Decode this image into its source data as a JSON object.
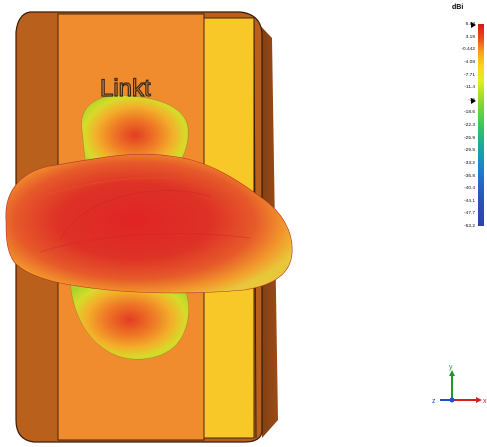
{
  "model": {
    "label": "Linkt"
  },
  "legend": {
    "unit": "dBi",
    "ticks": [
      "6.83",
      "3.19",
      "-0.442",
      "-4.08",
      "-7.71",
      "-11.4",
      "-15",
      "-18.6",
      "-22.3",
      "-25.9",
      "-29.5",
      "-33.2",
      "-36.8",
      "-40.4",
      "-44.1",
      "-47.7",
      "-53.2"
    ],
    "marker_ticks": [
      "6.83",
      "-15"
    ]
  },
  "axes": {
    "y": "y",
    "x": "x",
    "z": "z",
    "colors": {
      "x": "#d42020",
      "y": "#1e9a2a",
      "z": "#1f4fcf"
    }
  },
  "colors": {
    "device_frame": "#b85a1c",
    "device_face": "#f08a30",
    "side_strip": "#f9c82a",
    "pattern_core": "#e02a24",
    "pattern_edge": "#b8dc2a"
  }
}
